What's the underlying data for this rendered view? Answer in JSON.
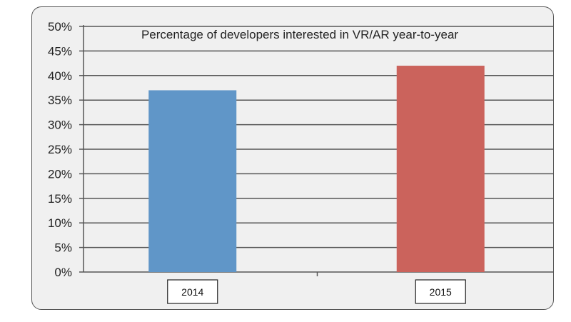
{
  "chart_data": {
    "type": "bar",
    "title": "Percentage of developers interested in VR/AR year-to-year",
    "categories": [
      "2014",
      "2015"
    ],
    "values": [
      37,
      42
    ],
    "colors": [
      "#6096c8",
      "#cb635c"
    ],
    "ylim": [
      0,
      50
    ],
    "yticks": [
      "0%",
      "5%",
      "10%",
      "15%",
      "20%",
      "25%",
      "30%",
      "35%",
      "40%",
      "45%",
      "50%"
    ],
    "grid": true,
    "xlabel": "",
    "ylabel": ""
  }
}
